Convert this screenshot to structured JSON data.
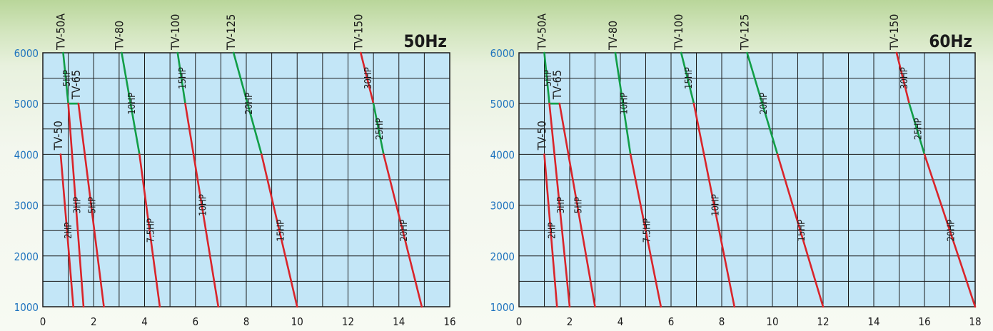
{
  "chart_data": [
    {
      "type": "line",
      "title": "50Hz",
      "xlim": [
        0,
        16
      ],
      "ylim": [
        1000,
        6000
      ],
      "x_ticks": [
        "0",
        "2",
        "4",
        "6",
        "8",
        "10",
        "12",
        "14",
        "16"
      ],
      "y_ticks": [
        "1000",
        "2000",
        "3000",
        "4000",
        "5000",
        "6000"
      ],
      "grid": true,
      "colors": {
        "high": "#119e47",
        "low": "#d9242a",
        "plot_bg": "#c3e6f7",
        "title": "#1a1a1a",
        "tick": "#1e73be"
      },
      "series": [
        {
          "name": "TV-50A",
          "segments": [
            {
              "label": "5HP",
              "color": "high",
              "points": [
                [
                  0.8,
                  6000
                ],
                [
                  1.0,
                  5000
                ]
              ]
            }
          ]
        },
        {
          "name": "TV-65",
          "segments": [
            {
              "label": "",
              "color": "high",
              "points": [
                [
                  1.0,
                  5000
                ],
                [
                  1.4,
                  5000
                ]
              ]
            },
            {
              "label": "5HP",
              "color": "low",
              "points": [
                [
                  1.4,
                  5000
                ],
                [
                  2.4,
                  1000
                ]
              ]
            }
          ]
        },
        {
          "name": "TV-50",
          "segments": [
            {
              "label": "2HP",
              "color": "low",
              "points": [
                [
                  0.7,
                  4000
                ],
                [
                  1.2,
                  1000
                ]
              ]
            },
            {
              "label": "3HP",
              "color": "low",
              "points": [
                [
                  1.0,
                  5000
                ],
                [
                  1.6,
                  1000
                ]
              ]
            }
          ]
        },
        {
          "name": "TV-80",
          "segments": [
            {
              "label": "10HP",
              "color": "high",
              "points": [
                [
                  3.1,
                  6000
                ],
                [
                  3.8,
                  4000
                ]
              ]
            },
            {
              "label": "7.5HP",
              "color": "low",
              "points": [
                [
                  3.8,
                  4000
                ],
                [
                  4.6,
                  1000
                ]
              ]
            }
          ]
        },
        {
          "name": "TV-100",
          "segments": [
            {
              "label": "15HP",
              "color": "high",
              "points": [
                [
                  5.3,
                  6000
                ],
                [
                  5.6,
                  5000
                ]
              ]
            },
            {
              "label": "10HP",
              "color": "low",
              "points": [
                [
                  5.6,
                  5000
                ],
                [
                  6.9,
                  1000
                ]
              ]
            }
          ]
        },
        {
          "name": "TV-125",
          "segments": [
            {
              "label": "20HP",
              "color": "high",
              "points": [
                [
                  7.5,
                  6000
                ],
                [
                  8.6,
                  4000
                ]
              ]
            },
            {
              "label": "15HP",
              "color": "low",
              "points": [
                [
                  8.6,
                  4000
                ],
                [
                  10.0,
                  1000
                ]
              ]
            }
          ]
        },
        {
          "name": "TV-150",
          "segments": [
            {
              "label": "30HP",
              "color": "low",
              "points": [
                [
                  12.5,
                  6000
                ],
                [
                  13.0,
                  5000
                ]
              ]
            },
            {
              "label": "25HP",
              "color": "high",
              "points": [
                [
                  13.0,
                  5000
                ],
                [
                  13.4,
                  4000
                ]
              ]
            },
            {
              "label": "20HP",
              "color": "low",
              "points": [
                [
                  13.4,
                  4000
                ],
                [
                  14.9,
                  1000
                ]
              ]
            }
          ]
        }
      ]
    },
    {
      "type": "line",
      "title": "60Hz",
      "xlim": [
        0,
        18
      ],
      "ylim": [
        1000,
        6000
      ],
      "x_ticks": [
        "0",
        "2",
        "4",
        "6",
        "8",
        "10",
        "12",
        "14",
        "16",
        "18"
      ],
      "y_ticks": [
        "1000",
        "2000",
        "3000",
        "4000",
        "5000",
        "6000"
      ],
      "grid": true,
      "colors": {
        "high": "#119e47",
        "low": "#d9242a",
        "plot_bg": "#c3e6f7",
        "title": "#1a1a1a",
        "tick": "#1e73be"
      },
      "series": [
        {
          "name": "TV-50A",
          "segments": [
            {
              "label": "5HP",
              "color": "high",
              "points": [
                [
                  1.0,
                  6000
                ],
                [
                  1.2,
                  5000
                ]
              ]
            }
          ]
        },
        {
          "name": "TV-65",
          "segments": [
            {
              "label": "",
              "color": "high",
              "points": [
                [
                  1.2,
                  5000
                ],
                [
                  1.6,
                  5000
                ]
              ]
            },
            {
              "label": "5HP",
              "color": "low",
              "points": [
                [
                  1.6,
                  5000
                ],
                [
                  3.0,
                  1000
                ]
              ]
            }
          ]
        },
        {
          "name": "TV-50",
          "segments": [
            {
              "label": "2HP",
              "color": "low",
              "points": [
                [
                  1.0,
                  4000
                ],
                [
                  1.5,
                  1000
                ]
              ]
            },
            {
              "label": "3HP",
              "color": "low",
              "points": [
                [
                  1.2,
                  5000
                ],
                [
                  2.0,
                  1000
                ]
              ]
            }
          ]
        },
        {
          "name": "TV-80",
          "segments": [
            {
              "label": "10HP",
              "color": "high",
              "points": [
                [
                  3.8,
                  6000
                ],
                [
                  4.4,
                  4000
                ]
              ]
            },
            {
              "label": "7.5HP",
              "color": "low",
              "points": [
                [
                  4.4,
                  4000
                ],
                [
                  5.6,
                  1000
                ]
              ]
            }
          ]
        },
        {
          "name": "TV-100",
          "segments": [
            {
              "label": "15HP",
              "color": "high",
              "points": [
                [
                  6.4,
                  6000
                ],
                [
                  6.9,
                  5000
                ]
              ]
            },
            {
              "label": "10HP",
              "color": "low",
              "points": [
                [
                  6.9,
                  5000
                ],
                [
                  8.5,
                  1000
                ]
              ]
            }
          ]
        },
        {
          "name": "TV-125",
          "segments": [
            {
              "label": "20HP",
              "color": "high",
              "points": [
                [
                  9.0,
                  6000
                ],
                [
                  10.2,
                  4000
                ]
              ]
            },
            {
              "label": "15HP",
              "color": "low",
              "points": [
                [
                  10.2,
                  4000
                ],
                [
                  12.0,
                  1000
                ]
              ]
            }
          ]
        },
        {
          "name": "TV-150",
          "segments": [
            {
              "label": "30HP",
              "color": "low",
              "points": [
                [
                  14.9,
                  6000
                ],
                [
                  15.4,
                  5000
                ]
              ]
            },
            {
              "label": "25HP",
              "color": "high",
              "points": [
                [
                  15.4,
                  5000
                ],
                [
                  16.0,
                  4000
                ]
              ]
            },
            {
              "label": "20HP",
              "color": "low",
              "points": [
                [
                  16.0,
                  4000
                ],
                [
                  18.0,
                  1000
                ]
              ]
            }
          ]
        }
      ]
    }
  ]
}
